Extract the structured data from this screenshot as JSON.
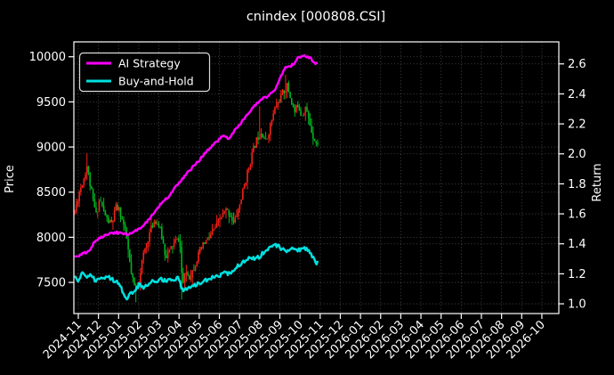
{
  "colors": {
    "background": "#000000",
    "text": "#ffffff",
    "grid": "#9a9a9a",
    "spine": "#ffffff",
    "candle_up": "#f32017",
    "candle_down": "#00b321",
    "ai_strategy": "#ff00ff",
    "buy_and_hold": "#00e0e0"
  },
  "chart_data": {
    "type": "candlestick",
    "title": "cnindex [000808.CSI]",
    "ylabel_left": "Price",
    "ylabel_right": "Return",
    "legend_position": "upper left",
    "grid": "dotted, both y-axes and monthly x",
    "x_tick_labels": [
      "2024-11",
      "2024-12",
      "2025-01",
      "2025-02",
      "2025-03",
      "2025-04",
      "2025-05",
      "2025-06",
      "2025-07",
      "2025-08",
      "2025-09",
      "2025-10",
      "2025-11",
      "2025-12",
      "2026-01",
      "2026-02",
      "2026-03",
      "2026-04",
      "2026-05",
      "2026-06",
      "2026-07",
      "2026-08",
      "2026-09",
      "2026-10"
    ],
    "y_ticks_left": [
      7500,
      8000,
      8500,
      9000,
      9500,
      10000
    ],
    "y_ticks_right": [
      "1.0",
      "1.2",
      "1.4",
      "1.6",
      "1.8",
      "2.0",
      "2.2",
      "2.4",
      "2.6"
    ],
    "ylim_left": [
      7155,
      10165
    ],
    "ylim_right": [
      0.935,
      2.747
    ],
    "data_fraction_of_xaxis": 0.503,
    "candles": {
      "count": 160,
      "seed": 11,
      "volatility": 42,
      "wick": 95,
      "close_keyframes": [
        [
          0,
          8280
        ],
        [
          0.018,
          8500
        ],
        [
          0.037,
          8650
        ],
        [
          0.051,
          8800
        ],
        [
          0.062,
          8600
        ],
        [
          0.077,
          8380
        ],
        [
          0.088,
          8250
        ],
        [
          0.103,
          8430
        ],
        [
          0.117,
          8300
        ],
        [
          0.136,
          8180
        ],
        [
          0.154,
          8150
        ],
        [
          0.168,
          8330
        ],
        [
          0.183,
          8300
        ],
        [
          0.201,
          8140
        ],
        [
          0.216,
          7950
        ],
        [
          0.231,
          7600
        ],
        [
          0.249,
          7420
        ],
        [
          0.264,
          7520
        ],
        [
          0.278,
          7750
        ],
        [
          0.297,
          7950
        ],
        [
          0.315,
          8100
        ],
        [
          0.33,
          8200
        ],
        [
          0.348,
          8120
        ],
        [
          0.363,
          7950
        ],
        [
          0.374,
          7790
        ],
        [
          0.388,
          7830
        ],
        [
          0.396,
          7880
        ],
        [
          0.414,
          7950
        ],
        [
          0.429,
          7980
        ],
        [
          0.436,
          7850
        ],
        [
          0.443,
          7450
        ],
        [
          0.458,
          7620
        ],
        [
          0.473,
          7560
        ],
        [
          0.491,
          7670
        ],
        [
          0.516,
          7850
        ],
        [
          0.538,
          7950
        ],
        [
          0.56,
          8020
        ],
        [
          0.582,
          8120
        ],
        [
          0.604,
          8230
        ],
        [
          0.623,
          8300
        ],
        [
          0.641,
          8250
        ],
        [
          0.655,
          8150
        ],
        [
          0.678,
          8350
        ],
        [
          0.696,
          8550
        ],
        [
          0.714,
          8750
        ],
        [
          0.733,
          8950
        ],
        [
          0.751,
          9100
        ],
        [
          0.769,
          9180
        ],
        [
          0.787,
          9050
        ],
        [
          0.806,
          9250
        ],
        [
          0.824,
          9420
        ],
        [
          0.842,
          9520
        ],
        [
          0.861,
          9620
        ],
        [
          0.875,
          9680
        ],
        [
          0.89,
          9520
        ],
        [
          0.905,
          9380
        ],
        [
          0.919,
          9480
        ],
        [
          0.934,
          9350
        ],
        [
          0.949,
          9450
        ],
        [
          0.963,
          9300
        ],
        [
          0.978,
          9150
        ],
        [
          0.993,
          9050
        ],
        [
          1,
          9010
        ]
      ],
      "spikes": [
        {
          "t": 0.051,
          "high": 8930
        },
        {
          "t": 0.249,
          "low": 7280
        },
        {
          "t": 0.443,
          "low": 7310
        },
        {
          "t": 0.762,
          "high": 9450
        },
        {
          "t": 0.868,
          "high": 9800
        }
      ]
    },
    "series": [
      {
        "name": "AI Strategy",
        "axis": "return",
        "color_key": "ai_strategy",
        "jitter": 0.008,
        "points": [
          [
            0,
            1.31
          ],
          [
            0.022,
            1.325
          ],
          [
            0.044,
            1.34
          ],
          [
            0.062,
            1.36
          ],
          [
            0.084,
            1.42
          ],
          [
            0.103,
            1.44
          ],
          [
            0.125,
            1.455
          ],
          [
            0.147,
            1.47
          ],
          [
            0.172,
            1.475
          ],
          [
            0.198,
            1.47
          ],
          [
            0.22,
            1.46
          ],
          [
            0.242,
            1.48
          ],
          [
            0.264,
            1.5
          ],
          [
            0.278,
            1.52
          ],
          [
            0.297,
            1.55
          ],
          [
            0.315,
            1.58
          ],
          [
            0.333,
            1.62
          ],
          [
            0.352,
            1.66
          ],
          [
            0.37,
            1.69
          ],
          [
            0.388,
            1.72
          ],
          [
            0.407,
            1.76
          ],
          [
            0.425,
            1.8
          ],
          [
            0.443,
            1.835
          ],
          [
            0.462,
            1.87
          ],
          [
            0.48,
            1.9
          ],
          [
            0.498,
            1.93
          ],
          [
            0.516,
            1.965
          ],
          [
            0.535,
            2.0
          ],
          [
            0.553,
            2.03
          ],
          [
            0.571,
            2.06
          ],
          [
            0.59,
            2.09
          ],
          [
            0.608,
            2.12
          ],
          [
            0.623,
            2.115
          ],
          [
            0.637,
            2.1
          ],
          [
            0.656,
            2.15
          ],
          [
            0.681,
            2.2
          ],
          [
            0.703,
            2.25
          ],
          [
            0.721,
            2.28
          ],
          [
            0.74,
            2.32
          ],
          [
            0.758,
            2.345
          ],
          [
            0.777,
            2.37
          ],
          [
            0.795,
            2.385
          ],
          [
            0.813,
            2.41
          ],
          [
            0.832,
            2.45
          ],
          [
            0.85,
            2.52
          ],
          [
            0.864,
            2.57
          ],
          [
            0.883,
            2.58
          ],
          [
            0.901,
            2.6
          ],
          [
            0.919,
            2.64
          ],
          [
            0.938,
            2.65
          ],
          [
            0.956,
            2.65
          ],
          [
            0.971,
            2.64
          ],
          [
            0.984,
            2.61
          ],
          [
            0.995,
            2.6
          ],
          [
            1,
            2.61
          ]
        ]
      },
      {
        "name": "Buy-and-Hold",
        "axis": "return",
        "color_key": "buy_and_hold",
        "jitter": 0.013,
        "points": [
          [
            0,
            1.18
          ],
          [
            0.015,
            1.15
          ],
          [
            0.029,
            1.21
          ],
          [
            0.048,
            1.17
          ],
          [
            0.066,
            1.2
          ],
          [
            0.084,
            1.15
          ],
          [
            0.103,
            1.16
          ],
          [
            0.121,
            1.17
          ],
          [
            0.136,
            1.18
          ],
          [
            0.154,
            1.16
          ],
          [
            0.172,
            1.15
          ],
          [
            0.19,
            1.11
          ],
          [
            0.205,
            1.05
          ],
          [
            0.216,
            1.04
          ],
          [
            0.231,
            1.07
          ],
          [
            0.249,
            1.09
          ],
          [
            0.267,
            1.13
          ],
          [
            0.286,
            1.11
          ],
          [
            0.304,
            1.135
          ],
          [
            0.322,
            1.16
          ],
          [
            0.341,
            1.15
          ],
          [
            0.359,
            1.165
          ],
          [
            0.377,
            1.15
          ],
          [
            0.396,
            1.16
          ],
          [
            0.414,
            1.165
          ],
          [
            0.432,
            1.17
          ],
          [
            0.436,
            1.1
          ],
          [
            0.451,
            1.09
          ],
          [
            0.469,
            1.11
          ],
          [
            0.487,
            1.12
          ],
          [
            0.509,
            1.135
          ],
          [
            0.531,
            1.15
          ],
          [
            0.553,
            1.165
          ],
          [
            0.575,
            1.18
          ],
          [
            0.597,
            1.19
          ],
          [
            0.615,
            1.21
          ],
          [
            0.634,
            1.2
          ],
          [
            0.652,
            1.225
          ],
          [
            0.67,
            1.25
          ],
          [
            0.689,
            1.27
          ],
          [
            0.707,
            1.29
          ],
          [
            0.725,
            1.31
          ],
          [
            0.744,
            1.3
          ],
          [
            0.762,
            1.315
          ],
          [
            0.78,
            1.35
          ],
          [
            0.799,
            1.37
          ],
          [
            0.817,
            1.385
          ],
          [
            0.835,
            1.39
          ],
          [
            0.853,
            1.365
          ],
          [
            0.872,
            1.35
          ],
          [
            0.89,
            1.36
          ],
          [
            0.908,
            1.37
          ],
          [
            0.927,
            1.355
          ],
          [
            0.945,
            1.37
          ],
          [
            0.963,
            1.36
          ],
          [
            0.974,
            1.33
          ],
          [
            0.985,
            1.3
          ],
          [
            0.993,
            1.27
          ],
          [
            1,
            1.285
          ]
        ]
      }
    ]
  }
}
